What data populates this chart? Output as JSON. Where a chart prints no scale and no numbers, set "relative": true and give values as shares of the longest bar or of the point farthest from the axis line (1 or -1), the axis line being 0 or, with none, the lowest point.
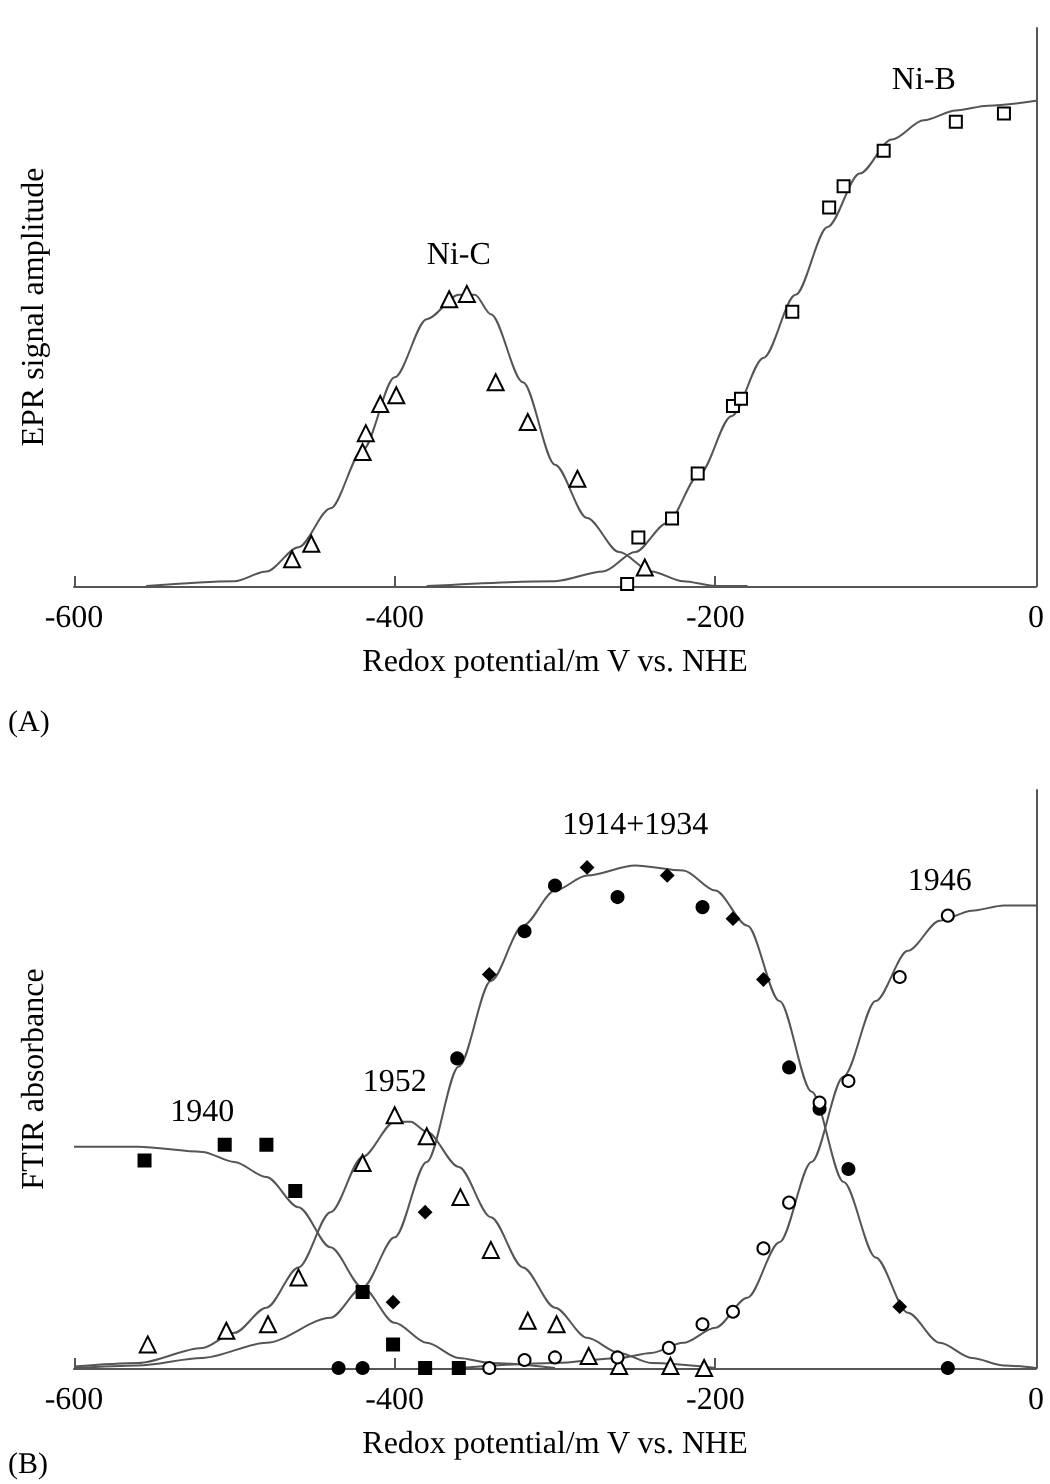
{
  "chart_data": [
    {
      "type": "scatter",
      "xlabel": "Redox potential/m V vs. NHE",
      "ylabel": "EPR signal amplitude",
      "relative": true,
      "xlim": [
        -600,
        0
      ],
      "xticks": [
        -600,
        -400,
        -200,
        0
      ],
      "tick_labels": "x",
      "grid": false,
      "annotations": [
        "(A)"
      ],
      "series": [
        {
          "marker": "triangle",
          "color": "#ffffff",
          "x": [
            -464,
            -452,
            -420,
            -418,
            -409,
            -399,
            -366,
            -355,
            -337,
            -317,
            -286,
            -244
          ],
          "values": [
            0.055,
            0.087,
            0.276,
            0.315,
            0.375,
            0.393,
            0.591,
            0.602,
            0.42,
            0.338,
            0.221,
            0.038
          ]
        },
        {
          "marker": "square",
          "color": "#ffffff",
          "x": [
            -255,
            -248,
            -227,
            -211,
            -189,
            -184,
            -152,
            -129,
            -120,
            -95,
            -50,
            -20
          ],
          "values": [
            0.004,
            0.1,
            0.139,
            0.232,
            0.371,
            0.386,
            0.565,
            0.78,
            0.824,
            0.897,
            0.957,
            0.974
          ]
        },
        {
          "type": "line",
          "name": "Ni-C",
          "marker": "none",
          "color": "#555555",
          "x": [
            -555,
            -500,
            -480,
            -460,
            -440,
            -420,
            -400,
            -380,
            -360,
            -350,
            -340,
            -320,
            -300,
            -280,
            -260,
            -240,
            -220,
            -200,
            -180
          ],
          "values": [
            0,
            0.01,
            0.03,
            0.08,
            0.16,
            0.28,
            0.43,
            0.55,
            0.6,
            0.6,
            0.56,
            0.42,
            0.25,
            0.14,
            0.07,
            0.03,
            0.01,
            0,
            0
          ]
        },
        {
          "type": "line",
          "name": "Ni-B",
          "marker": "none",
          "color": "#555555",
          "x": [
            -380,
            -300,
            -270,
            -250,
            -230,
            -210,
            -190,
            -170,
            -150,
            -130,
            -110,
            -90,
            -70,
            -50,
            -30,
            0
          ],
          "values": [
            0,
            0.01,
            0.03,
            0.07,
            0.13,
            0.23,
            0.35,
            0.47,
            0.6,
            0.74,
            0.85,
            0.92,
            0.96,
            0.98,
            0.99,
            1
          ]
        }
      ]
    },
    {
      "type": "scatter",
      "xlabel": "Redox potential/m V vs. NHE",
      "ylabel": "FTIR absorbance",
      "relative": true,
      "xlim": [
        -600,
        0
      ],
      "xticks": [
        -600,
        -400,
        -200,
        0
      ],
      "tick_labels": "x",
      "grid": false,
      "annotations": [
        "(B)"
      ],
      "series": [
        {
          "marker": "square",
          "color": "#000000",
          "x": [
            -556,
            -506,
            -480,
            -462,
            -420,
            -401,
            -381,
            -360
          ],
          "values": [
            0.413,
            0.444,
            0.444,
            0.352,
            0.151,
            0.047,
            0,
            0
          ]
        },
        {
          "marker": "triangle",
          "color": "#ffffff",
          "x": [
            -554,
            -505,
            -479,
            -460,
            -420,
            -400,
            -380,
            -359,
            -340,
            -317,
            -299,
            -279,
            -260,
            -228,
            -207
          ],
          "values": [
            0.047,
            0.074,
            0.087,
            0.18,
            0.408,
            0.503,
            0.461,
            0.34,
            0.235,
            0.094,
            0.087,
            0.024,
            0.004,
            0.004,
            0
          ]
        },
        {
          "marker": "circle",
          "color": "#000000",
          "x": [
            -435,
            -420,
            -361,
            -319,
            -300,
            -261,
            -208,
            -154,
            -135,
            -117,
            -55
          ],
          "values": [
            0,
            0,
            0.616,
            0.869,
            0.96,
            0.937,
            0.917,
            0.598,
            0.516,
            0.396,
            0
          ]
        },
        {
          "marker": "diamond",
          "color": "#000000",
          "x": [
            -401,
            -381,
            -341,
            -280,
            -230,
            -189,
            -170,
            -85
          ],
          "values": [
            0.131,
            0.31,
            0.783,
            0.996,
            0.98,
            0.894,
            0.773,
            0.122
          ]
        },
        {
          "marker": "circle",
          "color": "#ffffff",
          "x": [
            -341,
            -319,
            -300,
            -261,
            -229,
            -208,
            -189,
            -170,
            -154,
            -135,
            -117,
            -85,
            -55
          ],
          "values": [
            0,
            0.016,
            0.021,
            0.021,
            0.04,
            0.087,
            0.112,
            0.238,
            0.329,
            0.528,
            0.571,
            0.778,
            0.9
          ]
        },
        {
          "type": "line",
          "name": "1940",
          "marker": "none",
          "color": "#555555",
          "x": [
            -600,
            -560,
            -520,
            -500,
            -480,
            -460,
            -440,
            -420,
            -400,
            -380,
            -360,
            -340,
            -300
          ],
          "values": [
            0.44,
            0.44,
            0.43,
            0.41,
            0.38,
            0.32,
            0.24,
            0.16,
            0.09,
            0.05,
            0.02,
            0.01,
            0
          ]
        },
        {
          "type": "line",
          "name": "1952",
          "marker": "none",
          "color": "#555555",
          "x": [
            -600,
            -560,
            -520,
            -500,
            -480,
            -460,
            -440,
            -420,
            -400,
            -390,
            -380,
            -360,
            -340,
            -320,
            -300,
            -280,
            -260,
            -240,
            -200
          ],
          "values": [
            0.003,
            0.01,
            0.04,
            0.07,
            0.12,
            0.2,
            0.31,
            0.42,
            0.49,
            0.49,
            0.47,
            0.4,
            0.3,
            0.2,
            0.12,
            0.06,
            0.03,
            0.01,
            0
          ]
        },
        {
          "type": "line",
          "name": "1914+1934",
          "marker": "none",
          "color": "#555555",
          "x": [
            -600,
            -560,
            -520,
            -480,
            -440,
            -420,
            -400,
            -380,
            -360,
            -340,
            -320,
            -300,
            -280,
            -250,
            -220,
            -200,
            -180,
            -160,
            -140,
            -120,
            -100,
            -80,
            -60,
            -40,
            -20,
            0
          ],
          "values": [
            0,
            0.005,
            0.02,
            0.05,
            0.1,
            0.16,
            0.26,
            0.41,
            0.6,
            0.77,
            0.88,
            0.95,
            0.98,
            1,
            0.99,
            0.95,
            0.88,
            0.73,
            0.55,
            0.37,
            0.22,
            0.11,
            0.05,
            0.02,
            0.005,
            0
          ]
        },
        {
          "type": "line",
          "name": "1946",
          "marker": "none",
          "color": "#555555",
          "x": [
            -360,
            -300,
            -260,
            -240,
            -220,
            -200,
            -180,
            -160,
            -140,
            -120,
            -100,
            -80,
            -60,
            -40,
            -20,
            0
          ],
          "values": [
            0,
            0.01,
            0.02,
            0.03,
            0.05,
            0.08,
            0.14,
            0.25,
            0.41,
            0.58,
            0.73,
            0.83,
            0.89,
            0.91,
            0.92,
            0.92
          ]
        }
      ]
    }
  ]
}
